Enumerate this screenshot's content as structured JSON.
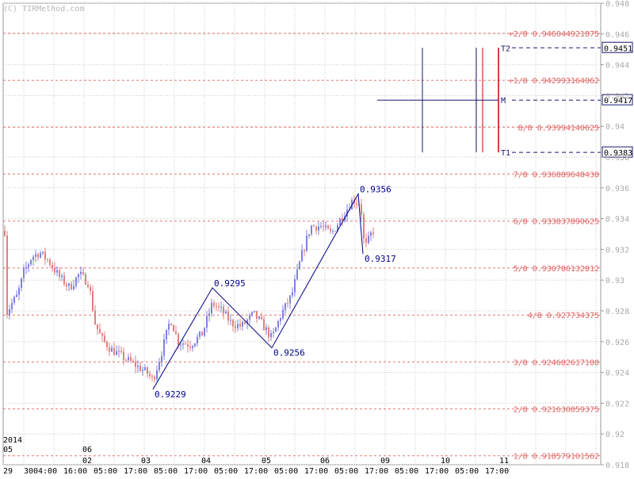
{
  "app": {
    "watermark": "(C) TIRMethod.com"
  },
  "chart_data": {
    "type": "candlestick",
    "title": "",
    "xlabel": "",
    "ylabel": "",
    "ylim": [
      0.918,
      0.948
    ],
    "grid": true,
    "y_ticks": [
      "0.948",
      "0.946",
      "0.944",
      "0.942",
      "0.94",
      "0.938",
      "0.936",
      "0.934",
      "0.932",
      "0.93",
      "0.928",
      "0.926",
      "0.924",
      "0.922",
      "0.92",
      "0.918"
    ],
    "x_labels_time": [
      "29",
      "30",
      "04:00",
      "16:00",
      "05:00",
      "17:00",
      "05:00",
      "17:00",
      "05:00",
      "17:00",
      "05:00",
      "17:00",
      "05:00",
      "17:00",
      "05:00",
      "17:00",
      "05:00",
      "17:00"
    ],
    "x_labels_date": [
      "03",
      "04",
      "05",
      "06",
      "09",
      "10",
      "11"
    ],
    "x_top_left": [
      "2014",
      "05",
      "06",
      "02"
    ],
    "murrey_levels": [
      {
        "label": "+2/8",
        "value": "0.946044921875",
        "y": 0.94604
      },
      {
        "label": "+1/8",
        "value": "0.942993164062",
        "y": 0.94299
      },
      {
        "label": "8/8",
        "value": "0.93994140625",
        "y": 0.93994
      },
      {
        "label": "7/8",
        "value": "0.936889648438",
        "y": 0.93689
      },
      {
        "label": "6/8",
        "value": "0.933837890625",
        "y": 0.93384
      },
      {
        "label": "5/8",
        "value": "0.930786132812",
        "y": 0.93079
      },
      {
        "label": "4/8",
        "value": "0.927734375",
        "y": 0.92773
      },
      {
        "label": "3/8",
        "value": "0.924682617188",
        "y": 0.92468
      },
      {
        "label": "2/8",
        "value": "0.921630859375",
        "y": 0.92163
      },
      {
        "label": "1/8",
        "value": "0.918579101562",
        "y": 0.91858
      }
    ],
    "zigzag": [
      {
        "value": 0.9229,
        "label": "0.9229"
      },
      {
        "value": 0.9295,
        "label": "0.9295"
      },
      {
        "value": 0.9256,
        "label": "0.9256"
      },
      {
        "value": 0.9356,
        "label": "0.9356"
      },
      {
        "value": 0.9317,
        "label": "0.9317"
      }
    ],
    "targets": [
      {
        "name": "T2",
        "value": "0.9451"
      },
      {
        "name": "M",
        "value": "0.9417"
      },
      {
        "name": "T1",
        "value": "0.9383"
      }
    ],
    "colors": {
      "bull": "#8080e0",
      "bear": "#e08080",
      "grid": "#c8c8c8",
      "level": "#e06060",
      "level_text": "#e06060",
      "zigzag": "#00008b",
      "target_lines": "#191970",
      "target_red": "#cc0000",
      "axis_text": "#000000",
      "price_text": "#555555"
    }
  }
}
